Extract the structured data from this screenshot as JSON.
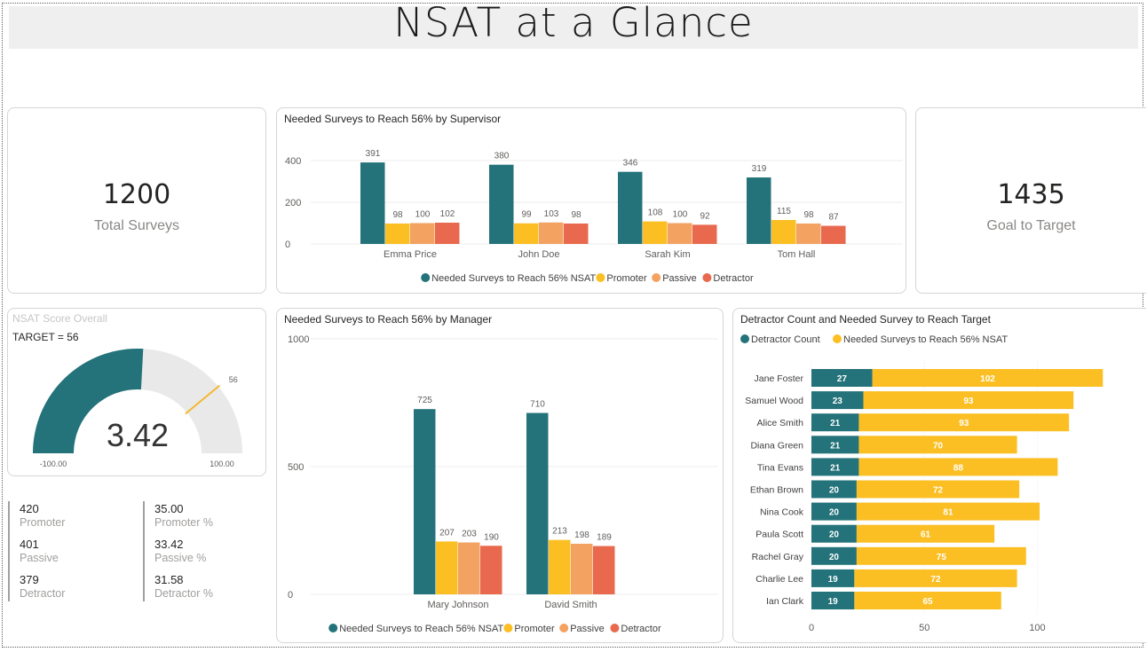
{
  "page": {
    "title": "NSAT at a Glance"
  },
  "kpis": {
    "total": {
      "value": "1200",
      "label": "Total Surveys"
    },
    "goal": {
      "value": "1435",
      "label": "Goal to Target"
    }
  },
  "gauge": {
    "title": "NSAT Score Overall",
    "target_text": "TARGET = 56",
    "value": 3.42,
    "value_label": "3.42",
    "min": -100,
    "max": 100,
    "target": 56,
    "min_label": "-100.00",
    "max_label": "100.00",
    "target_label": "56"
  },
  "stats": {
    "left": [
      {
        "value": "420",
        "label": "Promoter"
      },
      {
        "value": "401",
        "label": "Passive"
      },
      {
        "value": "379",
        "label": "Detractor"
      }
    ],
    "right": [
      {
        "value": "35.00",
        "label": "Promoter %"
      },
      {
        "value": "33.42",
        "label": "Passive %"
      },
      {
        "value": "31.58",
        "label": "Detractor %"
      }
    ]
  },
  "colors": {
    "needed": "#24737a",
    "promoter": "#fbbf24",
    "passive": "#f3a262",
    "detractor": "#e8694e",
    "gauge_bg": "#e9e9e9",
    "target": "#f5b82e"
  },
  "chart_data": [
    {
      "id": "supervisor",
      "type": "bar",
      "title": "Needed Surveys to Reach 56% by Supervisor",
      "categories": [
        "Emma Price",
        "John Doe",
        "Sarah Kim",
        "Tom Hall"
      ],
      "series": [
        {
          "name": "Needed Surveys to Reach 56% NSAT",
          "values": [
            391,
            380,
            346,
            319
          ]
        },
        {
          "name": "Promoter",
          "values": [
            98,
            99,
            108,
            115
          ]
        },
        {
          "name": "Passive",
          "values": [
            100,
            103,
            100,
            98
          ]
        },
        {
          "name": "Detractor",
          "values": [
            102,
            98,
            92,
            87
          ]
        }
      ],
      "yticks": [
        0,
        200,
        400
      ],
      "ylim": [
        0,
        440
      ]
    },
    {
      "id": "manager",
      "type": "bar",
      "title": "Needed Surveys to Reach 56% by Manager",
      "categories": [
        "Mary Johnson",
        "David Smith"
      ],
      "series": [
        {
          "name": "Needed Surveys to Reach 56% NSAT",
          "values": [
            725,
            710
          ]
        },
        {
          "name": "Promoter",
          "values": [
            207,
            213
          ]
        },
        {
          "name": "Passive",
          "values": [
            203,
            198
          ]
        },
        {
          "name": "Detractor",
          "values": [
            190,
            189
          ]
        }
      ],
      "yticks": [
        0,
        500,
        1000
      ],
      "ylim": [
        0,
        1000
      ]
    },
    {
      "id": "detractor",
      "type": "bar",
      "orientation": "horizontal-stacked",
      "title": "Detractor Count and Needed Survey to Reach Target",
      "categories": [
        "Jane Foster",
        "Samuel Wood",
        "Alice Smith",
        "Diana Green",
        "Tina Evans",
        "Ethan Brown",
        "Nina Cook",
        "Paula Scott",
        "Rachel Gray",
        "Charlie Lee",
        "Ian Clark"
      ],
      "series": [
        {
          "name": "Detractor Count",
          "values": [
            27,
            23,
            21,
            21,
            21,
            20,
            20,
            20,
            20,
            19,
            19
          ]
        },
        {
          "name": "Needed Surveys to Reach 56% NSAT",
          "values": [
            102,
            93,
            93,
            70,
            88,
            72,
            81,
            61,
            75,
            72,
            65
          ]
        }
      ],
      "xticks": [
        0,
        50,
        100
      ],
      "xlim": [
        0,
        130
      ]
    }
  ]
}
